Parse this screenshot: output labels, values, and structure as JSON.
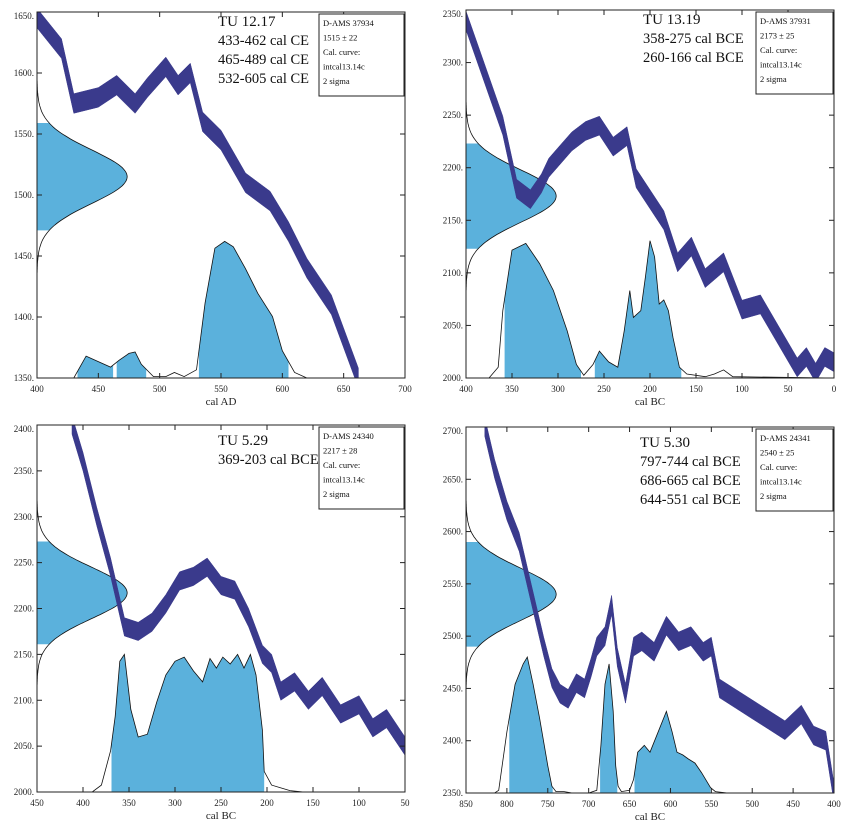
{
  "chart_data": [
    {
      "type": "area",
      "title": "TU 12.17",
      "ranges": [
        "433-462 cal CE",
        "465-489 cal CE",
        "532-605 cal CE"
      ],
      "lab_info": [
        "D-AMS 37934",
        "1515 ± 22",
        "Cal. curve:",
        "intcal13.14c",
        "2 sigma"
      ],
      "xlabel": "cal AD",
      "ylabel": "",
      "xlim": [
        400,
        700
      ],
      "ylim": [
        1350,
        1650
      ],
      "xticks": [
        "400",
        "450",
        "500",
        "550",
        "600",
        "650",
        "700"
      ],
      "yticks": [
        "1350.",
        "1400.",
        "1450.",
        "1500.",
        "1550.",
        "1600.",
        "1650."
      ],
      "radiocarbon_age": {
        "mean": 1515,
        "sigma": 22
      },
      "calibration_curve": {
        "x": [
          400,
          420,
          430,
          450,
          465,
          480,
          490,
          505,
          515,
          525,
          535,
          550,
          570,
          590,
          605,
          620,
          640,
          662
        ],
        "y": [
          1645,
          1620,
          1575,
          1580,
          1590,
          1575,
          1588,
          1605,
          1590,
          1600,
          1560,
          1545,
          1510,
          1495,
          1470,
          1440,
          1410,
          1350
        ],
        "half_width": 8
      },
      "calibrated_probability": {
        "x": [
          400,
          430,
          440,
          450,
          460,
          467,
          475,
          480,
          485,
          495,
          505,
          512,
          520,
          530,
          537,
          545,
          553,
          560,
          570,
          580,
          592,
          600,
          610,
          620,
          700
        ],
        "density": [
          0,
          0,
          0.16,
          0.12,
          0.08,
          0.13,
          0.18,
          0.19,
          0.1,
          0.01,
          0.01,
          0.04,
          0.01,
          0.06,
          0.55,
          0.95,
          1.0,
          0.96,
          0.8,
          0.62,
          0.45,
          0.2,
          0.04,
          0,
          0
        ],
        "peak_value": 1462
      },
      "shaded_ranges": [
        [
          433,
          462
        ],
        [
          465,
          489
        ],
        [
          532,
          605
        ]
      ]
    },
    {
      "type": "area",
      "title": "TU 13.19",
      "ranges": [
        "358-275 cal BCE",
        "260-166 cal BCE"
      ],
      "lab_info": [
        "D-AMS 37931",
        "2173 ± 25",
        "Cal. curve:",
        "intcal13.14c",
        "2 sigma"
      ],
      "xlabel": "cal BC",
      "ylabel": "",
      "xlim": [
        400,
        0
      ],
      "ylim": [
        2000,
        2350
      ],
      "xticks": [
        "400",
        "350",
        "300",
        "250",
        "200",
        "150",
        "100",
        "50",
        "0"
      ],
      "yticks": [
        "2000.",
        "2050.",
        "2100.",
        "2150.",
        "2200.",
        "2250.",
        "2300.",
        "2350."
      ],
      "radiocarbon_age": {
        "mean": 2173,
        "sigma": 25
      },
      "calibration_curve": {
        "x": [
          400,
          380,
          360,
          345,
          330,
          318,
          310,
          300,
          285,
          270,
          255,
          240,
          225,
          215,
          200,
          185,
          170,
          155,
          140,
          120,
          100,
          80,
          60,
          40,
          30,
          20,
          10,
          0
        ],
        "y": [
          2340,
          2290,
          2240,
          2180,
          2170,
          2185,
          2200,
          2210,
          2225,
          2235,
          2240,
          2220,
          2230,
          2190,
          2170,
          2150,
          2110,
          2125,
          2095,
          2110,
          2065,
          2070,
          2040,
          2010,
          2020,
          2005,
          2020,
          2015
        ],
        "half_width": 9
      },
      "calibrated_probability": {
        "x": [
          400,
          375,
          365,
          360,
          350,
          335,
          320,
          305,
          290,
          280,
          272,
          262,
          255,
          245,
          235,
          228,
          222,
          218,
          210,
          205,
          200,
          195,
          190,
          185,
          180,
          175,
          168,
          160,
          140,
          130,
          120,
          110,
          0
        ],
        "density": [
          0,
          0,
          0.08,
          0.5,
          0.95,
          1.0,
          0.85,
          0.65,
          0.35,
          0.1,
          0.02,
          0.1,
          0.2,
          0.12,
          0.08,
          0.35,
          0.65,
          0.45,
          0.5,
          0.75,
          1.02,
          0.9,
          0.55,
          0.58,
          0.5,
          0.3,
          0.08,
          0.03,
          0.01,
          0.03,
          0.06,
          0.01,
          0
        ],
        "peak_value": 2128
      },
      "shaded_ranges": [
        [
          358,
          275
        ],
        [
          260,
          166
        ]
      ]
    },
    {
      "type": "area",
      "title": "TU 5.29",
      "ranges": [
        "369-203 cal BCE"
      ],
      "lab_info": [
        "D-AMS 24340",
        "2217 ± 28",
        "Cal. curve:",
        "intcal13.14c",
        "2 sigma"
      ],
      "xlabel": "cal BC",
      "ylabel": "",
      "xlim": [
        450,
        50
      ],
      "ylim": [
        2000,
        2400
      ],
      "xticks": [
        "450",
        "400",
        "350",
        "300",
        "250",
        "200",
        "150",
        "100",
        "50"
      ],
      "yticks": [
        "2000.",
        "2050.",
        "2100.",
        "2150.",
        "2200.",
        "2250.",
        "2300.",
        "2350.",
        "2400."
      ],
      "radiocarbon_age": {
        "mean": 2217,
        "sigma": 28
      },
      "calibration_curve": {
        "x": [
          412,
          400,
          385,
          370,
          355,
          340,
          325,
          310,
          295,
          280,
          265,
          250,
          235,
          220,
          205,
          195,
          185,
          170,
          155,
          140,
          120,
          100,
          85,
          70,
          50
        ],
        "y": [
          2400,
          2360,
          2300,
          2245,
          2180,
          2175,
          2185,
          2205,
          2230,
          2235,
          2245,
          2225,
          2220,
          2190,
          2150,
          2140,
          2110,
          2120,
          2100,
          2115,
          2085,
          2095,
          2070,
          2080,
          2050
        ],
        "half_width": 10
      },
      "calibrated_probability": {
        "x": [
          450,
          390,
          380,
          370,
          365,
          360,
          355,
          348,
          340,
          330,
          320,
          310,
          300,
          290,
          280,
          270,
          262,
          255,
          248,
          240,
          232,
          225,
          218,
          212,
          205,
          203,
          195,
          185,
          175,
          160,
          50
        ],
        "density": [
          0,
          0,
          0.05,
          0.3,
          0.55,
          0.95,
          1.0,
          0.6,
          0.4,
          0.42,
          0.65,
          0.85,
          0.95,
          0.98,
          0.88,
          0.8,
          0.97,
          0.9,
          0.98,
          0.93,
          1.0,
          0.9,
          1.0,
          0.85,
          0.45,
          0.15,
          0.05,
          0.03,
          0.01,
          0,
          0
        ],
        "peak_value": 2150
      },
      "shaded_ranges": [
        [
          369,
          203
        ]
      ]
    },
    {
      "type": "area",
      "title": "TU 5.30",
      "ranges": [
        "797-744 cal BCE",
        "686-665 cal BCE",
        "644-551 cal BCE"
      ],
      "lab_info": [
        "D-AMS 24341",
        "2540 ± 25",
        "Cal. curve:",
        "intcal13.14c",
        "2 sigma"
      ],
      "xlabel": "cal BC",
      "ylabel": "",
      "xlim": [
        850,
        400
      ],
      "ylim": [
        2350,
        2700
      ],
      "xticks": [
        "850",
        "800",
        "750",
        "700",
        "650",
        "600",
        "550",
        "500",
        "450",
        "400"
      ],
      "yticks": [
        "2350.",
        "2400.",
        "2450.",
        "2500.",
        "2550.",
        "2600.",
        "2650.",
        "2700."
      ],
      "radiocarbon_age": {
        "mean": 2540,
        "sigma": 25
      },
      "calibration_curve": {
        "x": [
          827,
          815,
          800,
          785,
          770,
          755,
          745,
          735,
          725,
          715,
          705,
          697,
          690,
          680,
          672,
          665,
          655,
          645,
          635,
          620,
          605,
          590,
          575,
          560,
          550,
          540,
          520,
          500,
          480,
          460,
          440,
          425,
          410,
          400
        ],
        "y": [
          2700,
          2660,
          2620,
          2590,
          2540,
          2490,
          2460,
          2445,
          2440,
          2455,
          2450,
          2470,
          2490,
          2500,
          2530,
          2480,
          2445,
          2490,
          2495,
          2485,
          2510,
          2495,
          2500,
          2485,
          2490,
          2450,
          2440,
          2430,
          2420,
          2410,
          2425,
          2405,
          2400,
          2350
        ],
        "half_width": 9
      },
      "calibrated_probability": {
        "x": [
          850,
          815,
          810,
          800,
          790,
          780,
          775,
          768,
          760,
          750,
          745,
          740,
          730,
          720,
          700,
          690,
          685,
          680,
          675,
          670,
          667,
          664,
          660,
          650,
          645,
          640,
          632,
          625,
          615,
          605,
          598,
          592,
          585,
          578,
          570,
          562,
          555,
          551,
          545,
          530,
          400
        ],
        "density": [
          0,
          0,
          0.02,
          0.45,
          0.8,
          0.95,
          1.0,
          0.8,
          0.55,
          0.2,
          0.05,
          0.01,
          0.01,
          0.0,
          0.0,
          0.02,
          0.35,
          0.8,
          0.95,
          0.6,
          0.2,
          0.05,
          0.01,
          0.02,
          0.1,
          0.3,
          0.35,
          0.3,
          0.45,
          0.6,
          0.45,
          0.3,
          0.28,
          0.25,
          0.22,
          0.15,
          0.08,
          0.04,
          0.01,
          0,
          0
        ],
        "peak_value": 2480
      },
      "shaded_ranges": [
        [
          797,
          744
        ],
        [
          686,
          665
        ],
        [
          644,
          551
        ]
      ]
    }
  ]
}
